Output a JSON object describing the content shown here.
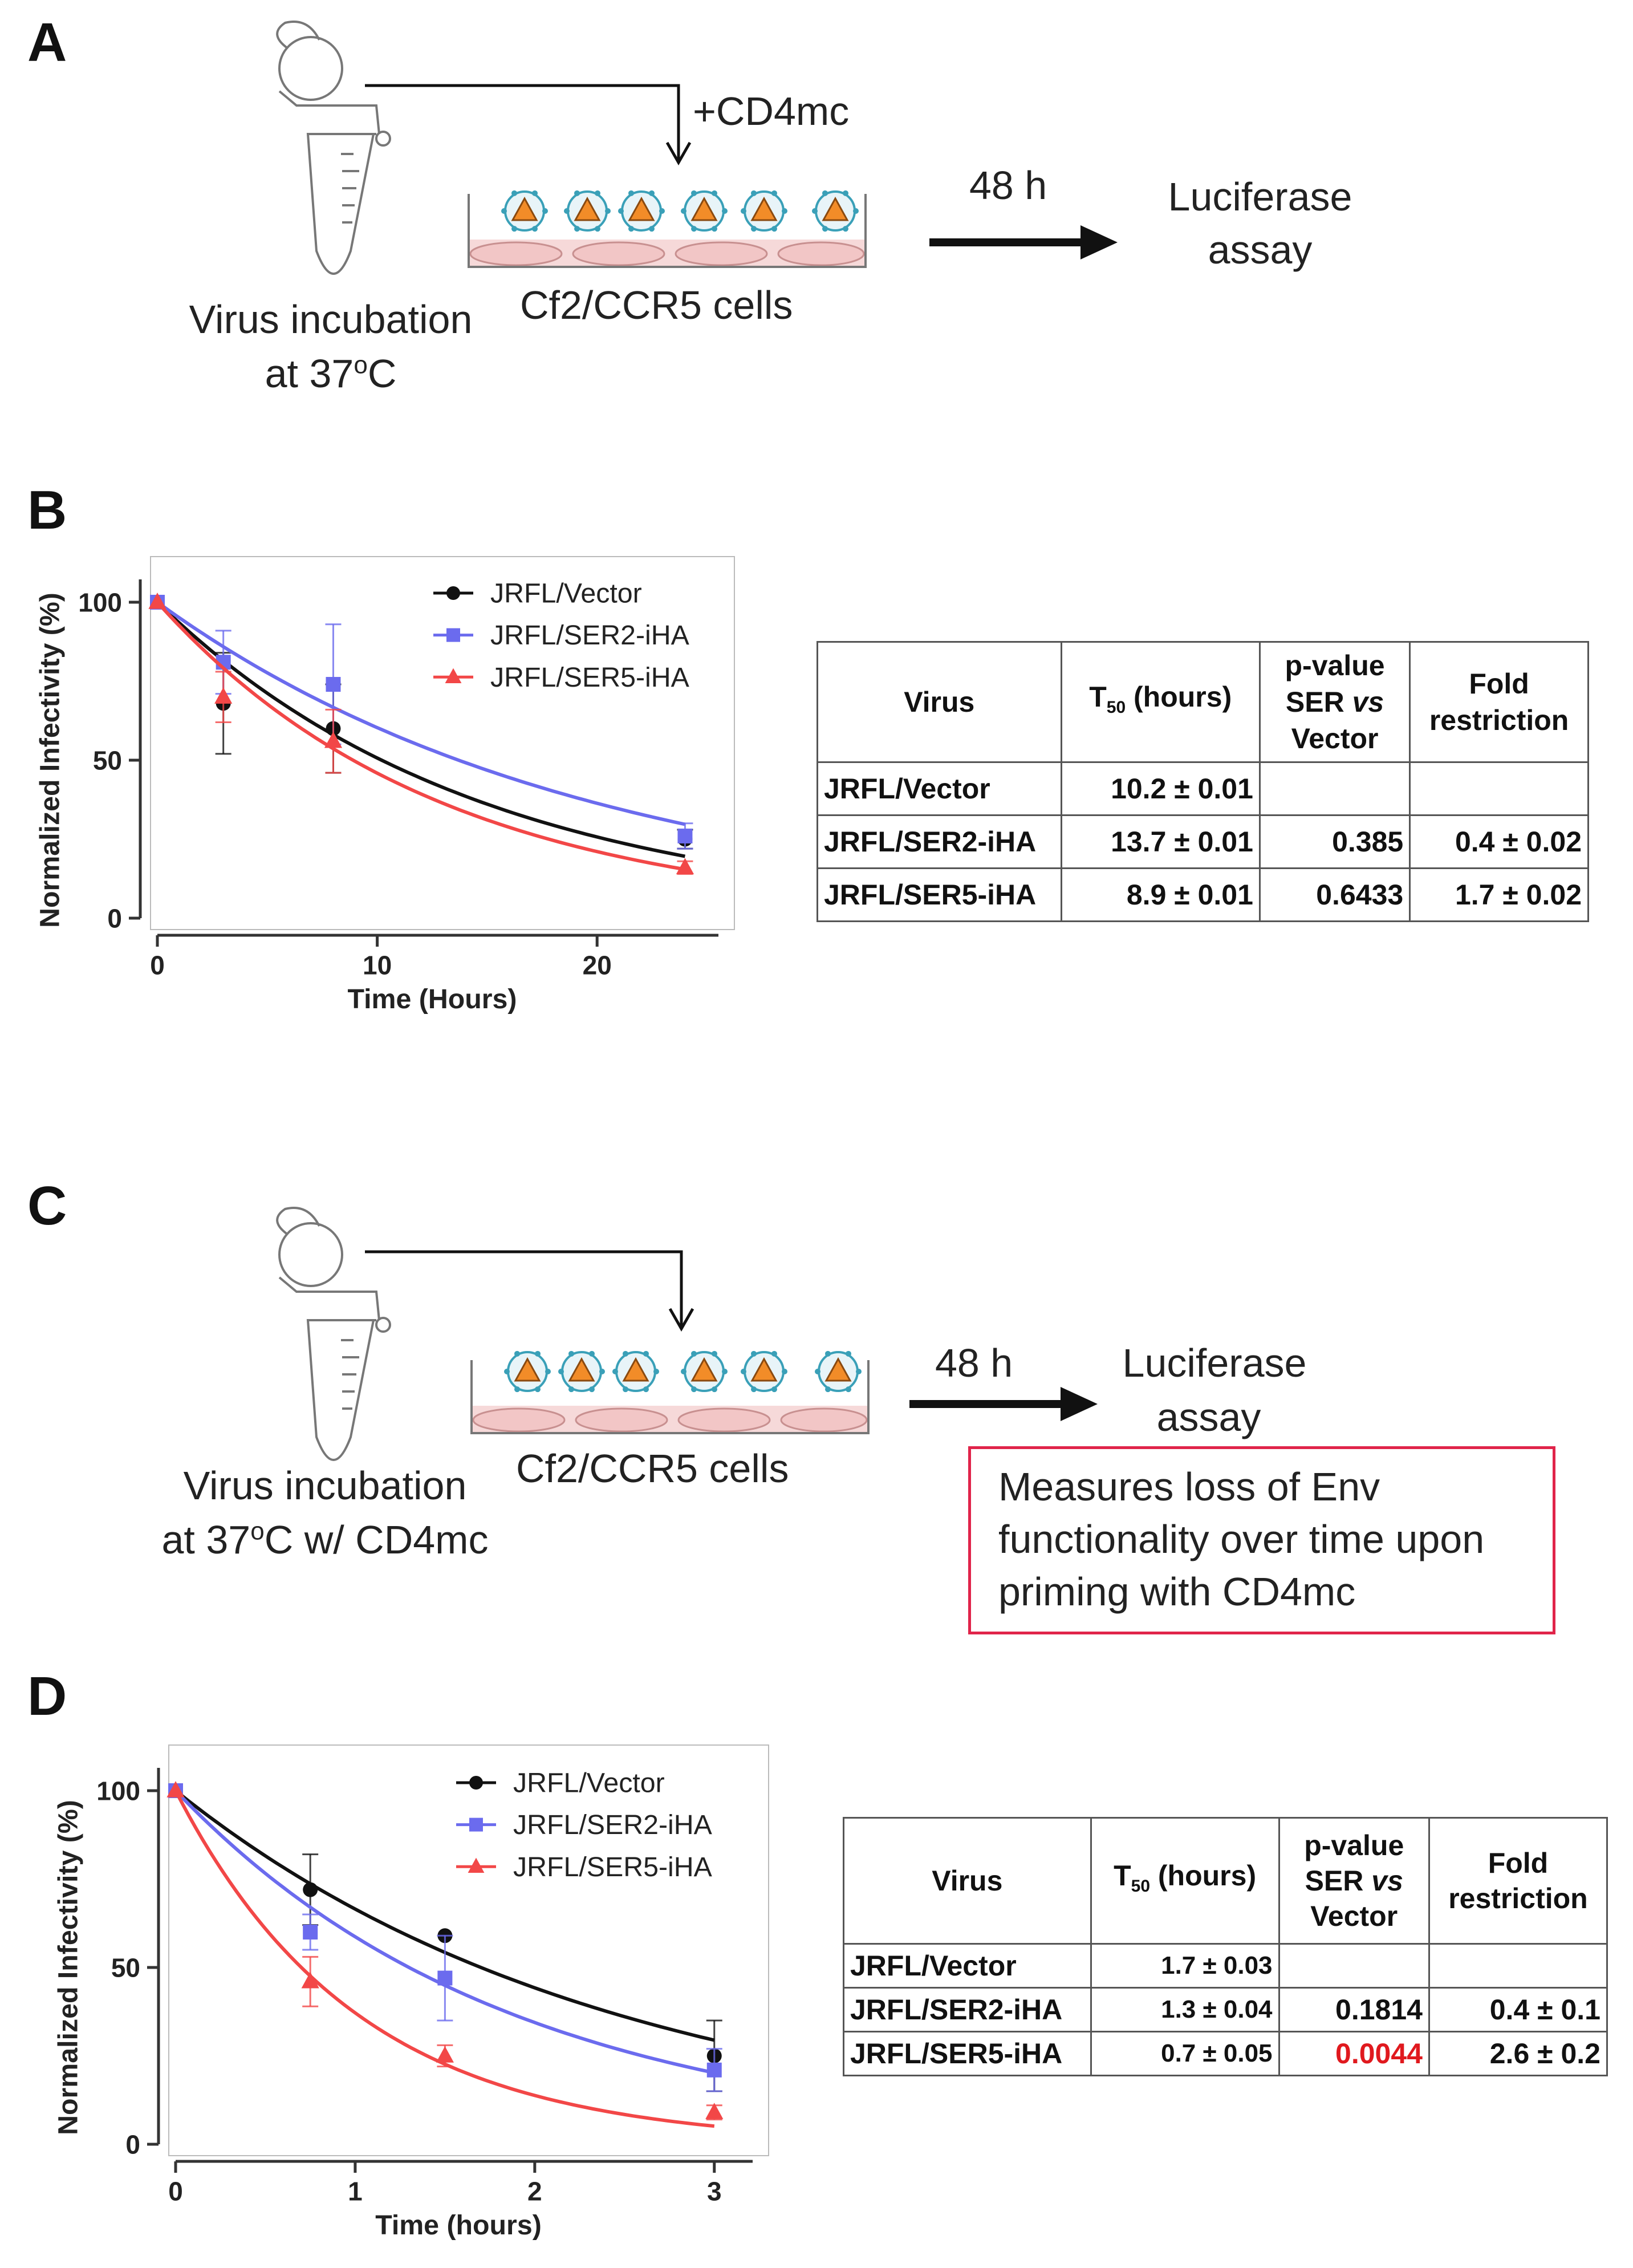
{
  "panels": {
    "A": {
      "letter": "A",
      "tube_label_1": "Virus incubation",
      "tube_label_2": "at 37",
      "tube_label_sup": "o",
      "tube_label_end": "C",
      "reagent": "+CD4mc",
      "cells_label": "Cf2/CCR5 cells",
      "time_label": "48 h",
      "assay_1": "Luciferase",
      "assay_2": "assay"
    },
    "B": {
      "letter": "B"
    },
    "C": {
      "letter": "C",
      "tube_label_1": "Virus incubation",
      "tube_label_2": "at 37",
      "tube_label_sup": "o",
      "tube_label_end": "C w/ CD4mc",
      "cells_label": "Cf2/CCR5 cells",
      "time_label": "48 h",
      "assay_1": "Luciferase",
      "assay_2": "assay",
      "note_1": "Measures loss of Env",
      "note_2": "functionality over time upon",
      "note_3": "priming with CD4mc"
    },
    "D": {
      "letter": "D"
    }
  },
  "tables": {
    "B": {
      "headers": [
        "Virus",
        "T",
        "50",
        " (hours)",
        "p-value",
        "SER",
        "vs",
        "Vector",
        "Fold",
        "restriction"
      ],
      "rows": [
        [
          "JRFL/Vector",
          "10.2 ± 0.01",
          "",
          ""
        ],
        [
          "JRFL/SER2-iHA",
          "13.7 ± 0.01",
          "0.385",
          "0.4 ± 0.02"
        ],
        [
          "JRFL/SER5-iHA",
          "8.9 ± 0.01",
          "0.6433",
          "1.7 ± 0.02"
        ]
      ]
    },
    "D": {
      "headers": [
        "Virus",
        "T",
        "50",
        " (hours)",
        "p-value",
        "SER",
        "vs",
        "Vector",
        "Fold",
        "restriction"
      ],
      "rows": [
        [
          "JRFL/Vector",
          "1.7 ± 0.03",
          "",
          ""
        ],
        [
          "JRFL/SER2-iHA",
          "1.3 ± 0.04",
          "0.1814",
          "0.4 ± 0.1"
        ],
        [
          "JRFL/SER5-iHA",
          "0.7 ± 0.05",
          "0.0044",
          "2.6 ± 0.2"
        ]
      ],
      "highlight_color": "#e0191e"
    }
  },
  "colors": {
    "vector": "#111111",
    "ser2": "#6b6bee",
    "ser5": "#f24747",
    "axis": "#333333"
  },
  "chart_data": [
    {
      "id": "B",
      "type": "line",
      "xlabel": "Time (Hours)",
      "ylabel": "Normalized Infectivity (%)",
      "xlim": [
        0,
        25
      ],
      "ylim": [
        0,
        100
      ],
      "xticks": [
        0,
        10,
        20
      ],
      "yticks": [
        0,
        50,
        100
      ],
      "legend_position": "top-right",
      "series": [
        {
          "name": "JRFL/Vector",
          "marker": "circle",
          "color": "#111111",
          "t50": 10.2,
          "x": [
            0,
            3,
            8,
            24
          ],
          "y": [
            100,
            68,
            60,
            25
          ],
          "err": [
            0,
            16,
            14,
            3
          ]
        },
        {
          "name": "JRFL/SER2-iHA",
          "marker": "square",
          "color": "#6b6bee",
          "t50": 13.7,
          "x": [
            0,
            3,
            8,
            24
          ],
          "y": [
            100,
            81,
            74,
            26
          ],
          "err": [
            0,
            10,
            19,
            4
          ]
        },
        {
          "name": "JRFL/SER5-iHA",
          "marker": "triangle",
          "color": "#f24747",
          "t50": 8.9,
          "x": [
            0,
            3,
            8,
            24
          ],
          "y": [
            100,
            70,
            56,
            16
          ],
          "err": [
            0,
            8,
            10,
            2
          ]
        }
      ]
    },
    {
      "id": "D",
      "type": "line",
      "xlabel": "Time (hours)",
      "ylabel": "Normalized Infectivity (%)",
      "xlim": [
        0,
        3.15
      ],
      "ylim": [
        0,
        100
      ],
      "xticks": [
        0,
        1,
        2,
        3
      ],
      "yticks": [
        0,
        50,
        100
      ],
      "legend_position": "top-right",
      "series": [
        {
          "name": "JRFL/Vector",
          "marker": "circle",
          "color": "#111111",
          "t50": 1.7,
          "x": [
            0,
            0.75,
            1.5,
            3
          ],
          "y": [
            100,
            72,
            59,
            25
          ],
          "err": [
            0,
            10,
            0,
            10
          ]
        },
        {
          "name": "JRFL/SER2-iHA",
          "marker": "square",
          "color": "#6b6bee",
          "t50": 1.3,
          "x": [
            0,
            0.75,
            1.5,
            3
          ],
          "y": [
            100,
            60,
            47,
            21
          ],
          "err": [
            0,
            5,
            12,
            6
          ]
        },
        {
          "name": "JRFL/SER5-iHA",
          "marker": "triangle",
          "color": "#f24747",
          "t50": 0.7,
          "x": [
            0,
            0.75,
            1.5,
            3
          ],
          "y": [
            100,
            46,
            25,
            9
          ],
          "err": [
            0,
            7,
            3,
            2
          ]
        }
      ]
    }
  ]
}
